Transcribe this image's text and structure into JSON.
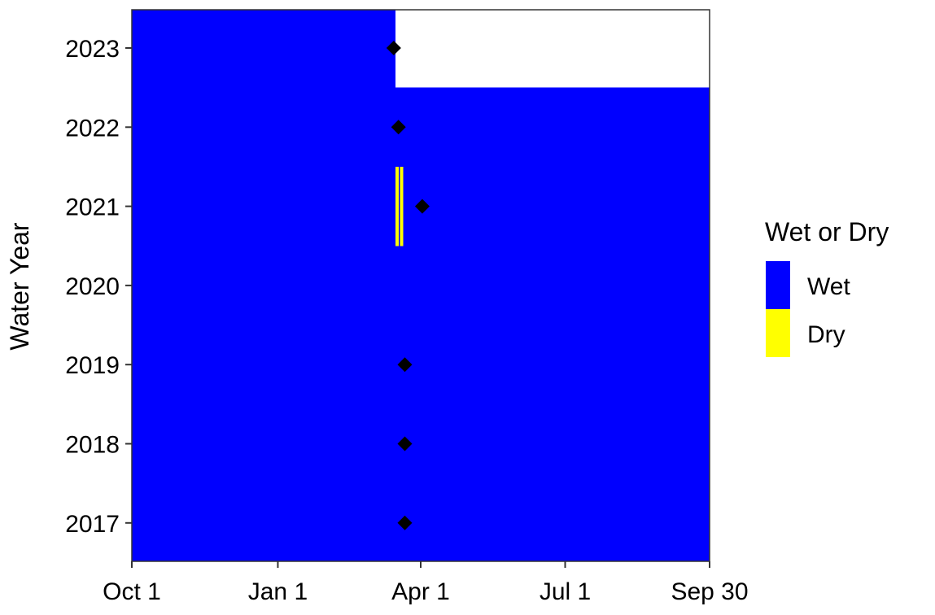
{
  "chart_data": {
    "type": "heatmap",
    "title": "",
    "xlabel": "",
    "ylabel": "Water Year",
    "x_unit": "day of water year (Oct 1 = 1)",
    "xlim": [
      1,
      365
    ],
    "x_ticks": [
      {
        "day": 1,
        "label": "Oct 1"
      },
      {
        "day": 93,
        "label": "Jan 1"
      },
      {
        "day": 183,
        "label": "Apr 1"
      },
      {
        "day": 274,
        "label": "Jul 1"
      },
      {
        "day": 365,
        "label": "Sep 30"
      }
    ],
    "years": [
      2017,
      2018,
      2019,
      2020,
      2021,
      2022,
      2023
    ],
    "legend": {
      "title": "Wet or Dry",
      "position": "right",
      "entries": [
        {
          "label": "Wet",
          "color": "#0000FF"
        },
        {
          "label": "Dry",
          "color": "#FFFF00"
        }
      ]
    },
    "records": [
      {
        "year": 2017,
        "start_day": 1,
        "end_day": 365
      },
      {
        "year": 2018,
        "start_day": 1,
        "end_day": 365
      },
      {
        "year": 2019,
        "start_day": 1,
        "end_day": 365
      },
      {
        "year": 2020,
        "start_day": 1,
        "end_day": 365
      },
      {
        "year": 2021,
        "start_day": 1,
        "end_day": 365
      },
      {
        "year": 2022,
        "start_day": 1,
        "end_day": 365
      },
      {
        "year": 2023,
        "start_day": 1,
        "end_day": 167
      }
    ],
    "dry_periods": [
      {
        "year": 2021,
        "start_day": 167,
        "end_day": 168
      },
      {
        "year": 2021,
        "start_day": 170,
        "end_day": 171
      }
    ],
    "markers": {
      "shape": "diamond",
      "color": "#000000",
      "points": [
        {
          "year": 2017,
          "day": 173
        },
        {
          "year": 2018,
          "day": 173
        },
        {
          "year": 2019,
          "day": 173
        },
        {
          "year": 2021,
          "day": 184
        },
        {
          "year": 2022,
          "day": 169
        },
        {
          "year": 2023,
          "day": 166
        }
      ]
    },
    "grid": false
  }
}
